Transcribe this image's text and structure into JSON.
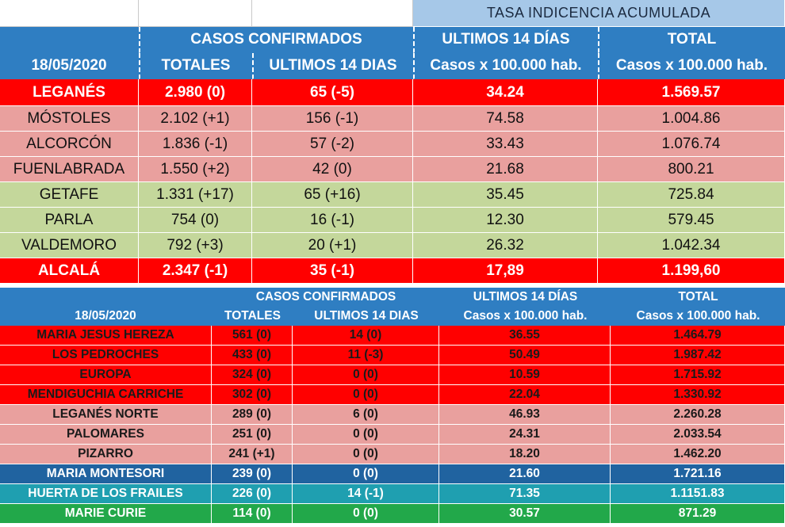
{
  "top": {
    "header_tasa": "TASA INDICENCIA  ACUMULADA",
    "header_casos": "CASOS  CONFIRMADOS",
    "header_ult14": "ULTIMOS 14 DÍAS",
    "header_total": "TOTAL",
    "date": "18/05/2020",
    "sub_totales": "TOTALES",
    "sub_ult14": "ULTIMOS 14 DIAS",
    "sub_rate1": "Casos x 100.000 hab.",
    "sub_rate2": "Casos x 100.000 hab.",
    "rows": [
      {
        "name": "LEGANÉS",
        "totales": "2.980 (0)",
        "ult14": "65 (-5)",
        "rate14": "34.24",
        "total": "1.569.57",
        "color": "#ff0000"
      },
      {
        "name": "MÓSTOLES",
        "totales": "2.102 (+1)",
        "ult14": "156 (-1)",
        "rate14": "74.58",
        "total": "1.004.86",
        "color": "#e9a09e"
      },
      {
        "name": "ALCORCÓN",
        "totales": "1.836 (-1)",
        "ult14": "57 (-2)",
        "rate14": "33.43",
        "total": "1.076.74",
        "color": "#e9a09e"
      },
      {
        "name": "FUENLABRADA",
        "totales": "1.550 (+2)",
        "ult14": "42 (0)",
        "rate14": "21.68",
        "total": "800.21",
        "color": "#e9a09e"
      },
      {
        "name": "GETAFE",
        "totales": "1.331 (+17)",
        "ult14": "65 (+16)",
        "rate14": "35.45",
        "total": "725.84",
        "color": "#c4d79b"
      },
      {
        "name": "PARLA",
        "totales": "754 (0)",
        "ult14": "16 (-1)",
        "rate14": "12.30",
        "total": "579.45",
        "color": "#c4d79b"
      },
      {
        "name": "VALDEMORO",
        "totales": "792 (+3)",
        "ult14": "20 (+1)",
        "rate14": "26.32",
        "total": "1.042.34",
        "color": "#c4d79b"
      },
      {
        "name": "ALCALÁ",
        "totales": "2.347 (-1)",
        "ult14": "35 (-1)",
        "rate14": "17,89",
        "total": "1.199,60",
        "color": "#ff0000"
      }
    ]
  },
  "bottom": {
    "header_casos": "CASOS  CONFIRMADOS",
    "header_ult14": "ULTIMOS 14 DÍAS",
    "header_total": "TOTAL",
    "date": "18/05/2020",
    "sub_totales": "TOTALES",
    "sub_ult14": "ULTIMOS 14 DIAS",
    "sub_rate1": "Casos x 100.000 hab.",
    "sub_rate2": "Casos x 100.000 hab.",
    "rows": [
      {
        "name": "MARIA JESUS HEREZA",
        "totales": "561 (0)",
        "ult14": "14 (0)",
        "rate14": "36.55",
        "total": "1.464.79",
        "color": "#ff0000"
      },
      {
        "name": "LOS PEDROCHES",
        "totales": "433 (0)",
        "ult14": "11 (-3)",
        "rate14": "50.49",
        "total": "1.987.42",
        "color": "#ff0000"
      },
      {
        "name": "EUROPA",
        "totales": "324 (0)",
        "ult14": "0 (0)",
        "rate14": "10.59",
        "total": "1.715.92",
        "color": "#ff0000"
      },
      {
        "name": "MENDIGUCHIA CARRICHE",
        "totales": "302 (0)",
        "ult14": "0 (0)",
        "rate14": "22.04",
        "total": "1.330.92",
        "color": "#ff0000"
      },
      {
        "name": "LEGANÉS NORTE",
        "totales": "289 (0)",
        "ult14": "6 (0)",
        "rate14": "46.93",
        "total": "2.260.28",
        "color": "#e9a09e"
      },
      {
        "name": "PALOMARES",
        "totales": "251 (0)",
        "ult14": "0 (0)",
        "rate14": "24.31",
        "total": "2.033.54",
        "color": "#e9a09e"
      },
      {
        "name": "PIZARRO",
        "totales": "241 (+1)",
        "ult14": "0 (0)",
        "rate14": "18.20",
        "total": "1.462.20",
        "color": "#e9a09e"
      },
      {
        "name": "MARIA MONTESORI",
        "totales": "239 (0)",
        "ult14": "0 (0)",
        "rate14": "21.60",
        "total": "1.721.16",
        "color": "#2063a0"
      },
      {
        "name": "HUERTA DE LOS FRAILES",
        "totales": "226 (0)",
        "ult14": "14 (-1)",
        "rate14": "71.35",
        "total": "1.1151.83",
        "color": "#1f9fb0"
      },
      {
        "name": "MARIE CURIE",
        "totales": "114 (0)",
        "ult14": "0 (0)",
        "rate14": "30.57",
        "total": "871.29",
        "color": "#22a84a"
      }
    ]
  }
}
